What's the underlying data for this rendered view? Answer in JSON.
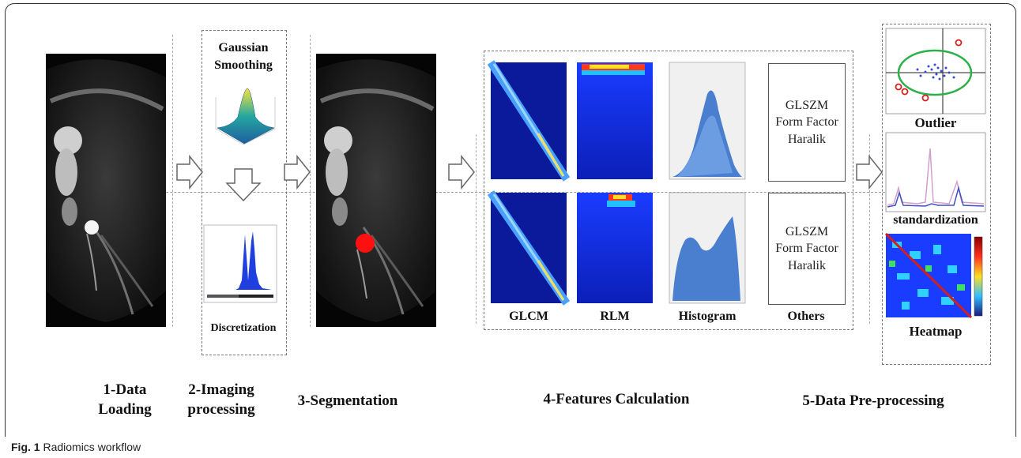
{
  "labels": {
    "gaussian": "Gaussian Smoothing",
    "discretization": "Discretization",
    "outlier": "Outlier",
    "standardization": "standardization",
    "heatmap": "Heatmap",
    "glcm": "GLCM",
    "rlm": "RLM",
    "histogram": "Histogram",
    "others": "Others",
    "others_box_1": [
      "GLSZM",
      "Form Factor",
      "Haralik"
    ],
    "others_box_2": [
      "GLSZM",
      "Form Factor",
      "Haralik"
    ]
  },
  "steps": {
    "s1": [
      "1-Data",
      "Loading"
    ],
    "s2": [
      "2-Imaging",
      "processing"
    ],
    "s3": "3-Segmentation",
    "s4": "4-Features Calculation",
    "s5": "5-Data Pre-processing"
  },
  "caption": {
    "fig": "Fig. 1",
    "text": "Radiomics workflow"
  },
  "colors": {
    "arrow_stroke": "#555",
    "segmentation": "#ff1010",
    "heatmap_blue": "#1a3cff",
    "histogram": "#4a7fd0"
  }
}
